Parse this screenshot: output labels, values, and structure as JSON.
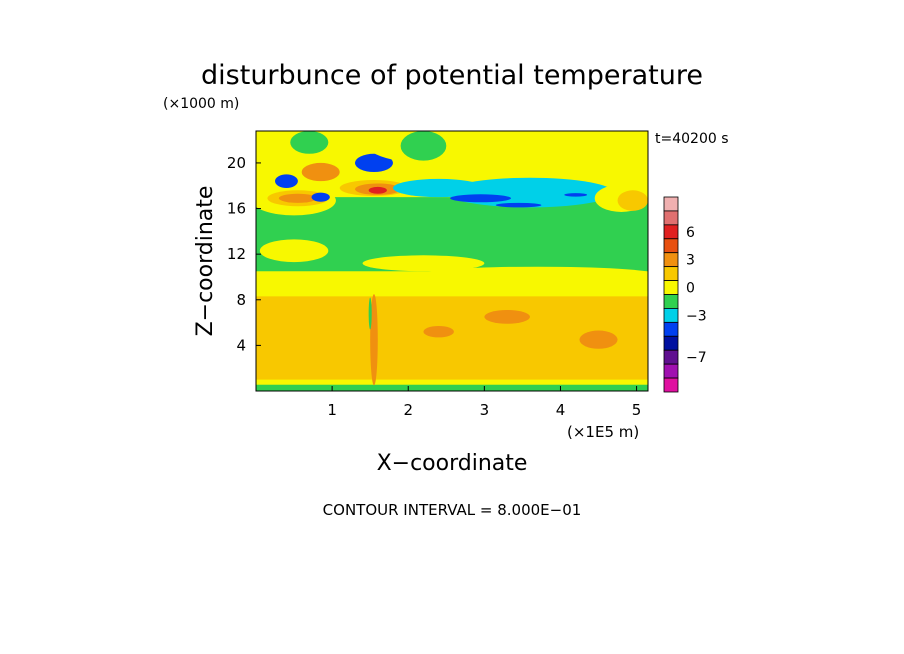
{
  "chart_data": {
    "type": "heatmap",
    "title": "disturbunce of potential temperature",
    "time_label": "t=40200 s",
    "xlabel": "X−coordinate",
    "ylabel": "Z−coordinate",
    "x_unit": "(×1E5 m)",
    "z_unit": "(×1000 m)",
    "footer": "CONTOUR INTERVAL = 8.000E−01",
    "xlim": [
      0,
      5.15
    ],
    "ylim": [
      0,
      22.8
    ],
    "x_ticks": [
      {
        "value": 1,
        "label": "1"
      },
      {
        "value": 2,
        "label": "2"
      },
      {
        "value": 3,
        "label": "3"
      },
      {
        "value": 4,
        "label": "4"
      },
      {
        "value": 5,
        "label": "5"
      }
    ],
    "y_ticks": [
      {
        "value": 4,
        "label": "4"
      },
      {
        "value": 8,
        "label": "8"
      },
      {
        "value": 12,
        "label": "12"
      },
      {
        "value": 16,
        "label": "16"
      },
      {
        "value": 20,
        "label": "20"
      }
    ],
    "colorbar": {
      "levels": [
        {
          "color": "#f0b0b0"
        },
        {
          "color": "#e07070"
        },
        {
          "color": "#e02020",
          "label": "6"
        },
        {
          "color": "#e85010"
        },
        {
          "color": "#f09010",
          "label": "3"
        },
        {
          "color": "#f8c800"
        },
        {
          "color": "#f8f800",
          "label": "0"
        },
        {
          "color": "#30d050"
        },
        {
          "color": "#00d0e8",
          "label": "−3"
        },
        {
          "color": "#0040f0"
        },
        {
          "color": "#0010a0"
        },
        {
          "color": "#601090",
          "label": "−7"
        },
        {
          "color": "#a010b0"
        },
        {
          "color": "#e010a0"
        }
      ]
    },
    "field": {
      "background": "#f8f800",
      "regions": [
        {
          "kind": "rect",
          "x0": 0,
          "x1": 5.15,
          "z0": 1.0,
          "z1": 8.3,
          "color": "#f8c800"
        },
        {
          "kind": "rect",
          "x0": 0,
          "x1": 5.15,
          "z0": 0,
          "z1": 0.55,
          "color": "#30d050"
        },
        {
          "kind": "rect",
          "x0": 0,
          "x1": 5.15,
          "z0": 10.5,
          "z1": 17.0,
          "color": "#30d050"
        },
        {
          "kind": "ellipse",
          "x": 3.7,
          "z": 10.3,
          "rx": 1.5,
          "rz": 0.6,
          "color": "#f8f800"
        },
        {
          "kind": "ellipse",
          "x": 2.2,
          "z": 11.2,
          "rx": 0.8,
          "rz": 0.7,
          "color": "#f8f800"
        },
        {
          "kind": "ellipse",
          "x": 0.5,
          "z": 12.3,
          "rx": 0.45,
          "rz": 1.0,
          "color": "#f8f800"
        },
        {
          "kind": "ellipse",
          "x": 0.5,
          "z": 16.7,
          "rx": 0.55,
          "rz": 1.3,
          "color": "#f8f800"
        },
        {
          "kind": "ellipse",
          "x": 0.55,
          "z": 16.9,
          "rx": 0.4,
          "rz": 0.7,
          "color": "#f8c800"
        },
        {
          "kind": "ellipse",
          "x": 0.55,
          "z": 16.9,
          "rx": 0.25,
          "rz": 0.4,
          "color": "#f09010"
        },
        {
          "kind": "ellipse",
          "x": 1.4,
          "z": 18.2,
          "rx": 0.55,
          "rz": 0.9,
          "color": "#f8f800"
        },
        {
          "kind": "ellipse",
          "x": 1.55,
          "z": 17.8,
          "rx": 0.45,
          "rz": 0.7,
          "color": "#f8c800"
        },
        {
          "kind": "ellipse",
          "x": 1.6,
          "z": 17.7,
          "rx": 0.3,
          "rz": 0.5,
          "color": "#f09010"
        },
        {
          "kind": "ellipse",
          "x": 1.6,
          "z": 17.6,
          "rx": 0.12,
          "rz": 0.3,
          "color": "#e02020"
        },
        {
          "kind": "ellipse",
          "x": 0.85,
          "z": 19.2,
          "rx": 0.25,
          "rz": 0.8,
          "color": "#f09010"
        },
        {
          "kind": "ellipse",
          "x": 0.4,
          "z": 18.4,
          "rx": 0.15,
          "rz": 0.6,
          "color": "#0040f0"
        },
        {
          "kind": "ellipse",
          "x": 0.85,
          "z": 17.0,
          "rx": 0.12,
          "rz": 0.4,
          "color": "#0040f0"
        },
        {
          "kind": "ellipse",
          "x": 3.6,
          "z": 17.4,
          "rx": 1.1,
          "rz": 1.3,
          "color": "#00d0e8"
        },
        {
          "kind": "ellipse",
          "x": 2.4,
          "z": 17.8,
          "rx": 0.6,
          "rz": 0.8,
          "color": "#00d0e8"
        },
        {
          "kind": "ellipse",
          "x": 1.55,
          "z": 20.0,
          "rx": 0.25,
          "rz": 0.8,
          "color": "#0040f0"
        },
        {
          "kind": "ellipse",
          "x": 2.95,
          "z": 16.9,
          "rx": 0.4,
          "rz": 0.35,
          "color": "#0040f0"
        },
        {
          "kind": "ellipse",
          "x": 3.45,
          "z": 16.3,
          "rx": 0.3,
          "rz": 0.2,
          "color": "#0040f0"
        },
        {
          "kind": "ellipse",
          "x": 4.2,
          "z": 17.2,
          "rx": 0.15,
          "rz": 0.15,
          "color": "#0040f0"
        },
        {
          "kind": "ellipse",
          "x": 4.8,
          "z": 16.9,
          "rx": 0.35,
          "rz": 1.2,
          "color": "#f8f800"
        },
        {
          "kind": "ellipse",
          "x": 4.95,
          "z": 16.7,
          "rx": 0.2,
          "rz": 0.9,
          "color": "#f8c800"
        },
        {
          "kind": "ellipse",
          "x": 3.2,
          "z": 21.3,
          "rx": 1.7,
          "rz": 1.8,
          "color": "#f8f800"
        },
        {
          "kind": "ellipse",
          "x": 2.2,
          "z": 21.5,
          "rx": 0.3,
          "rz": 1.3,
          "color": "#30d050"
        },
        {
          "kind": "ellipse",
          "x": 0.7,
          "z": 21.8,
          "rx": 0.25,
          "rz": 1.0,
          "color": "#30d050"
        },
        {
          "kind": "ellipse",
          "x": 1.55,
          "z": 4.5,
          "rx": 0.05,
          "rz": 4.0,
          "color": "#f09010"
        },
        {
          "kind": "ellipse",
          "x": 1.5,
          "z": 6.8,
          "rx": 0.02,
          "rz": 1.4,
          "color": "#30d050"
        },
        {
          "kind": "ellipse",
          "x": 4.5,
          "z": 4.5,
          "rx": 0.25,
          "rz": 0.8,
          "color": "#f09010"
        },
        {
          "kind": "ellipse",
          "x": 2.4,
          "z": 5.2,
          "rx": 0.2,
          "rz": 0.5,
          "color": "#f09010"
        },
        {
          "kind": "ellipse",
          "x": 3.3,
          "z": 6.5,
          "rx": 0.3,
          "rz": 0.6,
          "color": "#f09010"
        }
      ]
    }
  }
}
